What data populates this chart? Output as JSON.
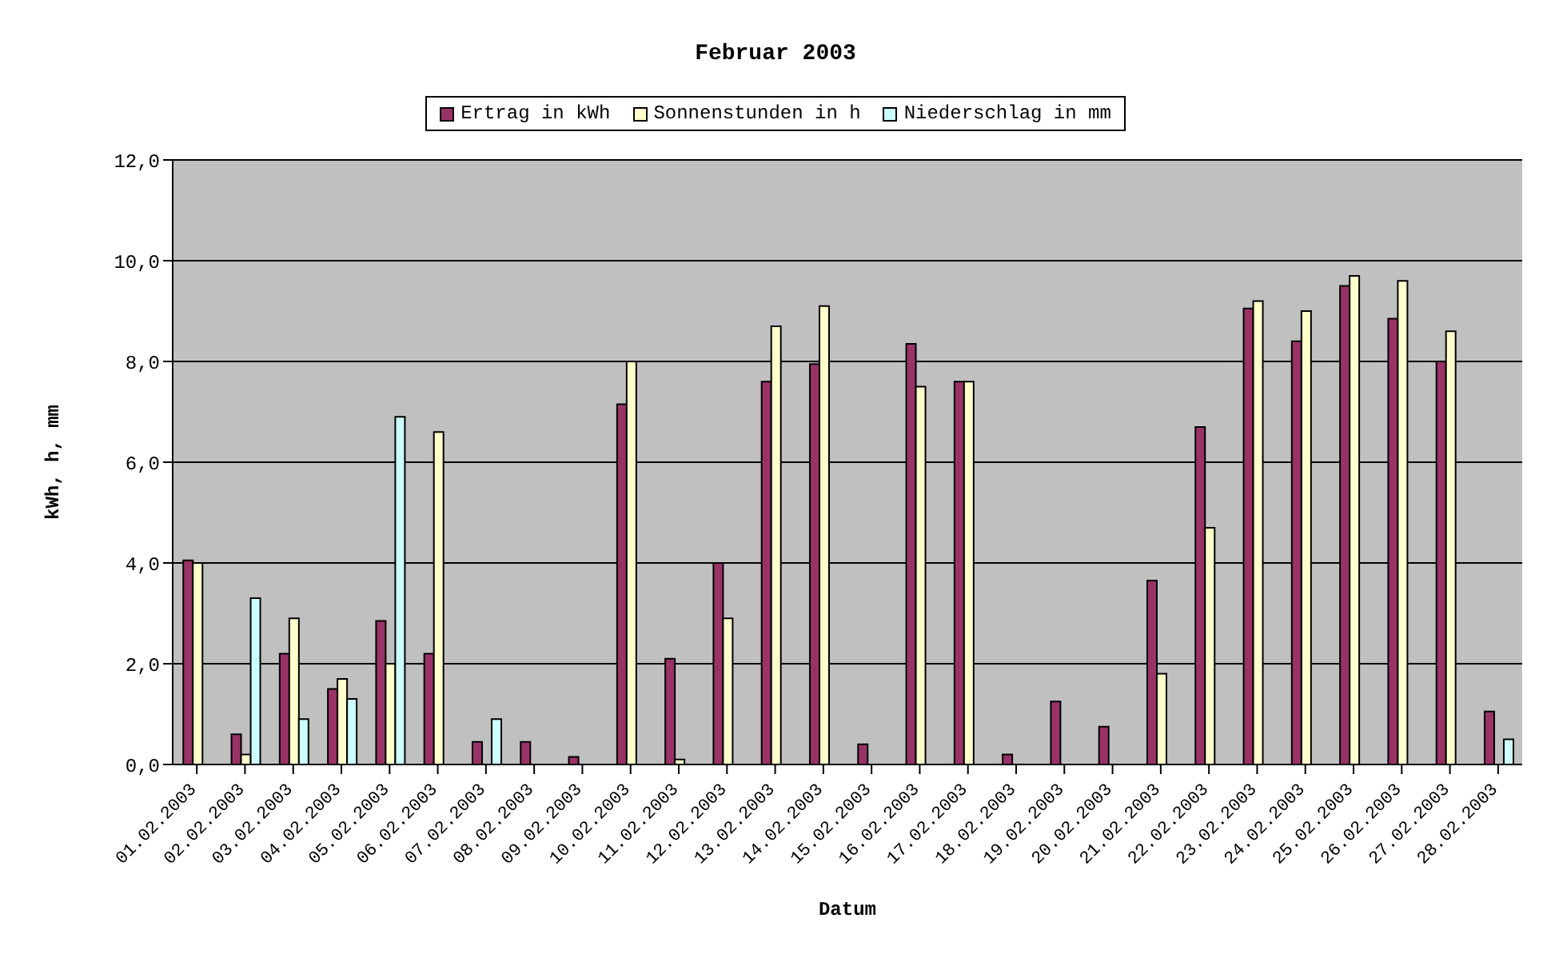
{
  "chart_data": {
    "type": "bar",
    "title": "Februar 2003",
    "xlabel": "Datum",
    "ylabel": "kWh, h, mm",
    "categories": [
      "01.02.2003",
      "02.02.2003",
      "03.02.2003",
      "04.02.2003",
      "05.02.2003",
      "06.02.2003",
      "07.02.2003",
      "08.02.2003",
      "09.02.2003",
      "10.02.2003",
      "11.02.2003",
      "12.02.2003",
      "13.02.2003",
      "14.02.2003",
      "15.02.2003",
      "16.02.2003",
      "17.02.2003",
      "18.02.2003",
      "19.02.2003",
      "20.02.2003",
      "21.02.2003",
      "22.02.2003",
      "23.02.2003",
      "24.02.2003",
      "25.02.2003",
      "26.02.2003",
      "27.02.2003",
      "28.02.2003"
    ],
    "series": [
      {
        "name": "Ertrag in kWh",
        "color": "#993366",
        "values": [
          4.05,
          0.6,
          2.2,
          1.5,
          2.85,
          2.2,
          0.45,
          0.45,
          0.15,
          7.15,
          2.1,
          4.0,
          7.6,
          7.95,
          0.4,
          8.35,
          7.6,
          0.2,
          1.25,
          0.75,
          3.65,
          6.7,
          9.05,
          8.4,
          9.5,
          8.85,
          8.0,
          1.05
        ]
      },
      {
        "name": "Sonnenstunden in h",
        "color": "#ffffcc",
        "values": [
          4.0,
          0.2,
          2.9,
          1.7,
          2.0,
          6.6,
          null,
          null,
          null,
          8.0,
          0.1,
          2.9,
          8.7,
          9.1,
          null,
          7.5,
          7.6,
          null,
          null,
          null,
          1.8,
          4.7,
          9.2,
          9.0,
          9.7,
          9.6,
          8.6,
          null
        ]
      },
      {
        "name": "Niederschlag in mm",
        "color": "#ccffff",
        "values": [
          null,
          3.3,
          0.9,
          1.3,
          6.9,
          null,
          0.9,
          null,
          null,
          null,
          null,
          null,
          null,
          null,
          null,
          null,
          null,
          null,
          null,
          null,
          null,
          null,
          null,
          null,
          null,
          null,
          null,
          0.5
        ]
      }
    ],
    "ylim": [
      0,
      12
    ],
    "yticks": [
      {
        "value": 0,
        "label": "0,0"
      },
      {
        "value": 2,
        "label": "2,0"
      },
      {
        "value": 4,
        "label": "4,0"
      },
      {
        "value": 6,
        "label": "6,0"
      },
      {
        "value": 8,
        "label": "8,0"
      },
      {
        "value": 10,
        "label": "10,0"
      },
      {
        "value": 12,
        "label": "12,0"
      }
    ],
    "grid": "y",
    "legend": "top"
  }
}
